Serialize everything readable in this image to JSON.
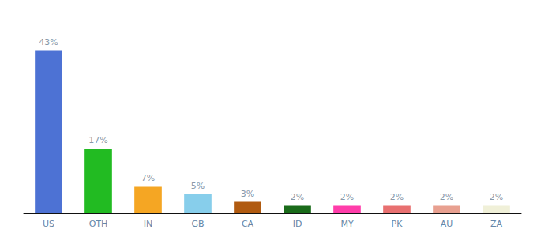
{
  "chart_data": {
    "type": "bar",
    "categories": [
      "US",
      "OTH",
      "IN",
      "GB",
      "CA",
      "ID",
      "MY",
      "PK",
      "AU",
      "ZA"
    ],
    "values": [
      43,
      17,
      7,
      5,
      3,
      2,
      2,
      2,
      2,
      2
    ],
    "value_labels": [
      "43%",
      "17%",
      "7%",
      "5%",
      "3%",
      "2%",
      "2%",
      "2%",
      "2%",
      "2%"
    ],
    "colors": [
      "#4d72d4",
      "#22bb22",
      "#f5a623",
      "#87ceeb",
      "#b05a10",
      "#1a6b1a",
      "#ff3daa",
      "#e87070",
      "#e8a090",
      "#f0f0d8"
    ],
    "ylim": [
      0,
      50
    ],
    "grid": false,
    "data_labels": true,
    "tick_labels": "x"
  }
}
